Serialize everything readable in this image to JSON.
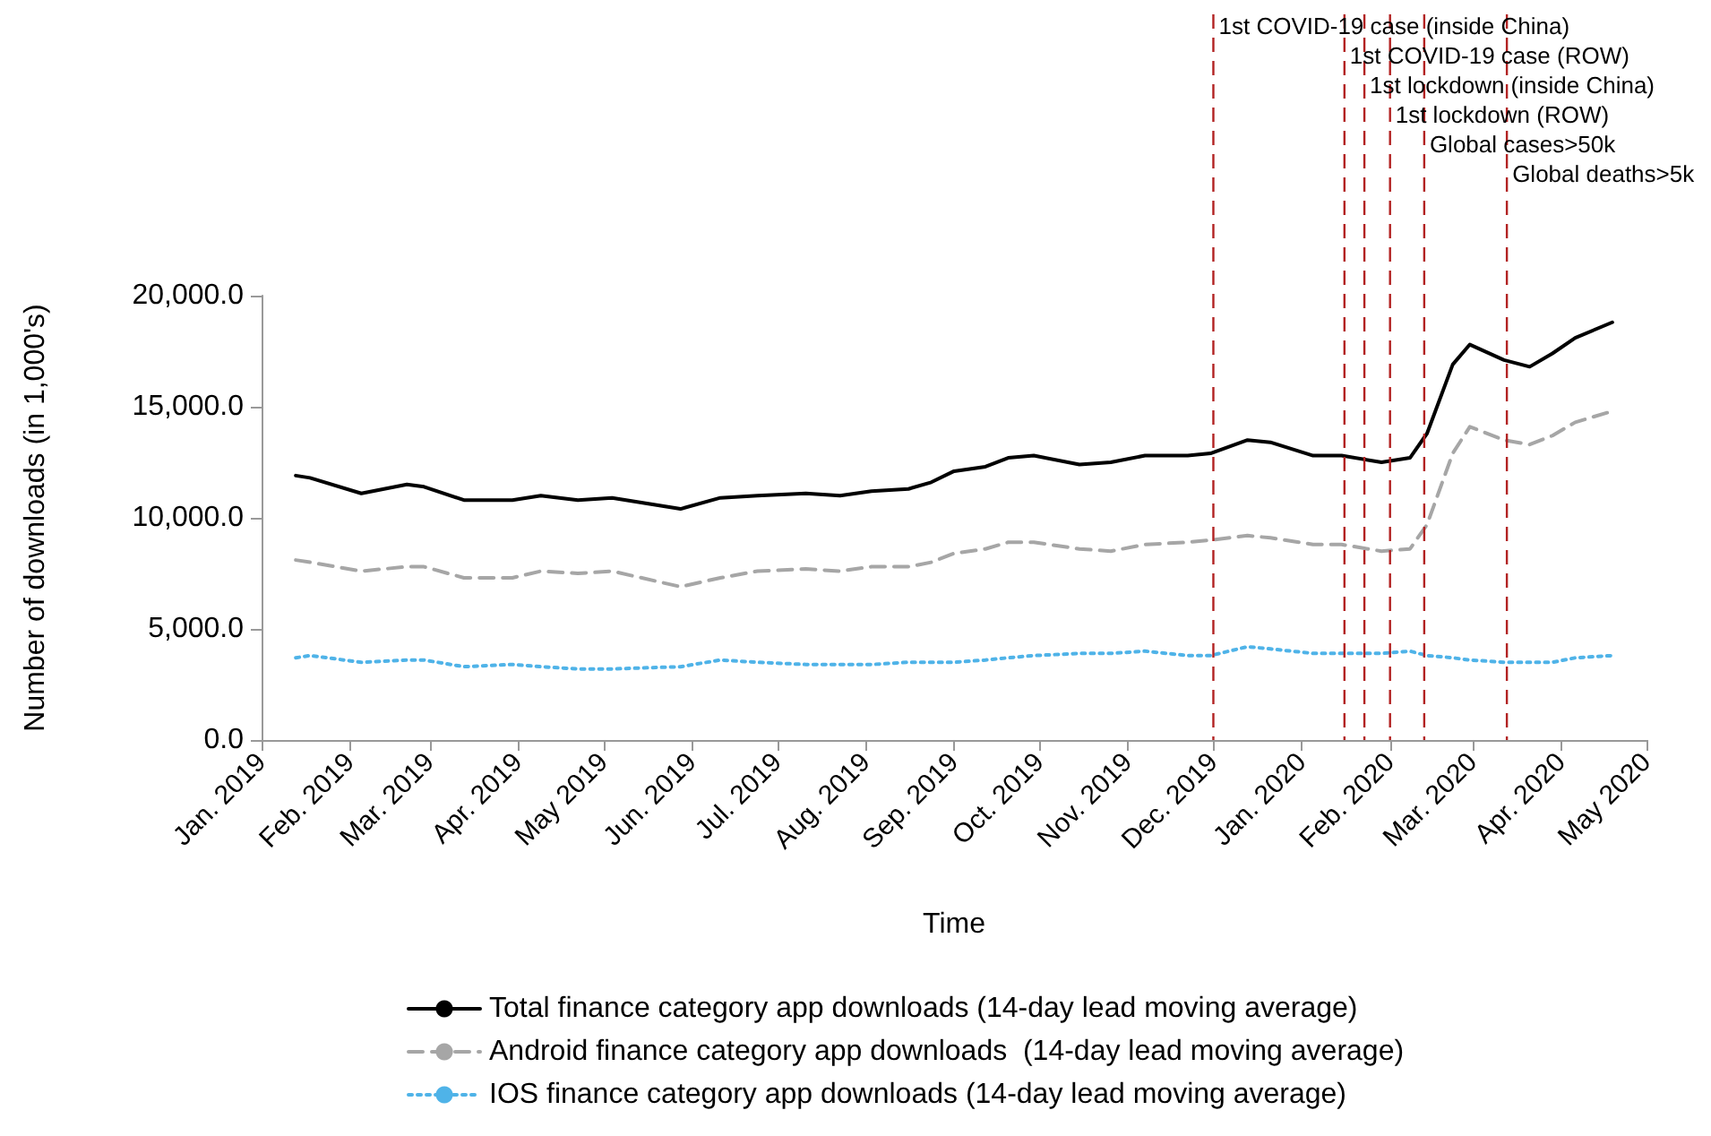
{
  "chart_data": {
    "type": "line",
    "xlabel": "Time",
    "ylabel": "Number of downloads (in 1,000's)",
    "x": [
      "2019-01-13",
      "2019-01-18",
      "2019-02-05",
      "2019-02-21",
      "2019-02-27",
      "2019-03-13",
      "2019-03-30",
      "2019-04-09",
      "2019-04-22",
      "2019-05-04",
      "2019-05-28",
      "2019-06-11",
      "2019-06-24",
      "2019-07-11",
      "2019-07-23",
      "2019-08-03",
      "2019-08-16",
      "2019-08-24",
      "2019-09-01",
      "2019-09-12",
      "2019-09-20",
      "2019-09-29",
      "2019-10-15",
      "2019-10-26",
      "2019-11-07",
      "2019-11-22",
      "2019-11-30",
      "2019-12-13",
      "2019-12-21",
      "2020-01-05",
      "2020-01-15",
      "2020-01-29",
      "2020-02-08",
      "2020-02-14",
      "2020-02-23",
      "2020-02-29",
      "2020-03-12",
      "2020-03-21",
      "2020-03-29",
      "2020-04-06",
      "2020-04-19"
    ],
    "series": [
      {
        "name": "Total finance category app downloads (14-day lead moving average)",
        "color": "#000000",
        "line_style": "solid",
        "values": [
          11900,
          11800,
          11100,
          11500,
          11400,
          10800,
          10800,
          11000,
          10800,
          10900,
          10400,
          10900,
          11000,
          11100,
          11000,
          11200,
          11300,
          11600,
          12100,
          12300,
          12700,
          12800,
          12400,
          12500,
          12800,
          12800,
          12900,
          13500,
          13400,
          12800,
          12800,
          12500,
          12700,
          13800,
          16900,
          17800,
          17100,
          16800,
          17400,
          18100,
          18800
        ]
      },
      {
        "name": "Android finance category app downloads  (14-day lead moving average)",
        "color": "#a6a6a6",
        "line_style": "dashed",
        "values": [
          8100,
          8000,
          7600,
          7800,
          7800,
          7300,
          7300,
          7600,
          7500,
          7600,
          6900,
          7300,
          7600,
          7700,
          7600,
          7800,
          7800,
          8000,
          8400,
          8600,
          8900,
          8900,
          8600,
          8500,
          8800,
          8900,
          9000,
          9200,
          9100,
          8800,
          8800,
          8500,
          8600,
          9700,
          12900,
          14100,
          13500,
          13300,
          13700,
          14300,
          14800
        ]
      },
      {
        "name": "IOS finance category app downloads (14-day lead moving average)",
        "color": "#4fb3e8",
        "line_style": "dotted",
        "values": [
          3700,
          3800,
          3500,
          3600,
          3600,
          3300,
          3400,
          3300,
          3200,
          3200,
          3300,
          3600,
          3500,
          3400,
          3400,
          3400,
          3500,
          3500,
          3500,
          3600,
          3700,
          3800,
          3900,
          3900,
          4000,
          3800,
          3800,
          4200,
          4100,
          3900,
          3900,
          3900,
          4000,
          3800,
          3700,
          3600,
          3500,
          3500,
          3500,
          3700,
          3800
        ]
      }
    ],
    "xlim": [
      "2019-01-01",
      "2020-05-01"
    ],
    "xticks": [
      {
        "value": "2019-01-01",
        "label": "Jan. 2019"
      },
      {
        "value": "2019-02-01",
        "label": "Feb. 2019"
      },
      {
        "value": "2019-03-01",
        "label": "Mar. 2019"
      },
      {
        "value": "2019-04-01",
        "label": "Apr. 2019"
      },
      {
        "value": "2019-05-01",
        "label": "May 2019"
      },
      {
        "value": "2019-06-01",
        "label": "Jun. 2019"
      },
      {
        "value": "2019-07-01",
        "label": "Jul. 2019"
      },
      {
        "value": "2019-08-01",
        "label": "Aug. 2019"
      },
      {
        "value": "2019-09-01",
        "label": "Sep. 2019"
      },
      {
        "value": "2019-10-01",
        "label": "Oct. 2019"
      },
      {
        "value": "2019-11-01",
        "label": "Nov. 2019"
      },
      {
        "value": "2019-12-01",
        "label": "Dec. 2019"
      },
      {
        "value": "2020-01-01",
        "label": "Jan. 2020"
      },
      {
        "value": "2020-02-01",
        "label": "Feb. 2020"
      },
      {
        "value": "2020-03-01",
        "label": "Mar. 2020"
      },
      {
        "value": "2020-04-01",
        "label": "Apr. 2020"
      },
      {
        "value": "2020-05-01",
        "label": "May 2020"
      }
    ],
    "ylim": [
      0,
      20000
    ],
    "yticks": [
      {
        "value": 0,
        "label": "0.0"
      },
      {
        "value": 5000,
        "label": "5,000.0"
      },
      {
        "value": 10000,
        "label": "10,000.0"
      },
      {
        "value": 15000,
        "label": "15,000.0"
      },
      {
        "value": 20000,
        "label": "20,000.0"
      }
    ],
    "ref_lines": [
      {
        "axis": "x",
        "value": "2019-12-01",
        "label": "1st COVID-19 case (inside China)",
        "color": "#b22222",
        "line_style": "dashed"
      },
      {
        "axis": "x",
        "value": "2020-01-16",
        "label": "1st COVID-19 case (ROW)",
        "color": "#b22222",
        "line_style": "dashed"
      },
      {
        "axis": "x",
        "value": "2020-01-23",
        "label": "1st lockdown (inside China)",
        "color": "#b22222",
        "line_style": "dashed"
      },
      {
        "axis": "x",
        "value": "2020-02-01",
        "label": "1st lockdown (ROW)",
        "color": "#b22222",
        "line_style": "dashed"
      },
      {
        "axis": "x",
        "value": "2020-02-13",
        "label": "Global cases>50k",
        "color": "#b22222",
        "line_style": "dashed"
      },
      {
        "axis": "x",
        "value": "2020-03-13",
        "label": "Global deaths>5k",
        "color": "#b22222",
        "line_style": "dashed"
      }
    ],
    "legend": "bottom",
    "grid": false,
    "marker": "none"
  }
}
